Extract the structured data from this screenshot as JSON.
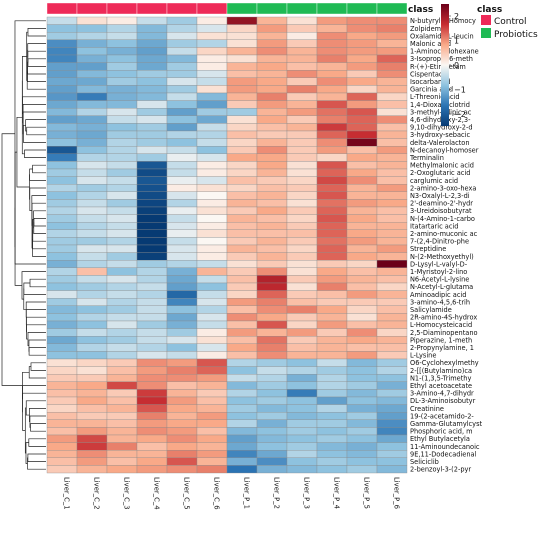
{
  "legend": {
    "title": "class",
    "items": [
      {
        "label": "Control",
        "color": "#ee2a58"
      },
      {
        "label": "Probiotics",
        "color": "#1fba54"
      }
    ]
  },
  "colorbar": {
    "ticks": [
      "2",
      "1",
      "0",
      "−1",
      "−2"
    ],
    "colors": [
      "#6b0019",
      "#c62d32",
      "#f9a988",
      "#fbf7f3",
      "#8ec2df",
      "#2b73b3",
      "#063a73"
    ]
  },
  "chart_data": {
    "type": "heatmap",
    "title": "",
    "columns": [
      "Liver_C_1",
      "Liver_C_2",
      "Liver_C_3",
      "Liver_C_4",
      "Liver_C_5",
      "Liver_C_6",
      "Liver_P_1",
      "Liver_P_2",
      "Liver_P_3",
      "Liver_P_4",
      "Liver_P_5",
      "Liver_P_6"
    ],
    "column_class": [
      "Control",
      "Control",
      "Control",
      "Control",
      "Control",
      "Control",
      "Probiotics",
      "Probiotics",
      "Probiotics",
      "Probiotics",
      "Probiotics",
      "Probiotics"
    ],
    "rows": [
      "N-butyryl-L-Homocy",
      "Zolpidem",
      "Oxalamido-L-leucin",
      "Malonic acid",
      "1-Aminocyclohexane",
      "3-Isopropyl-6-meth",
      "R-(+)-Etiracetam",
      "Cispentacin",
      "Isocarbamid",
      "Garcinia acid",
      "L-Threonic acid",
      "1,4-Dioxacyclotrid",
      "3-methyl-adipic ac",
      "4,6-dihydroxy-2,3-",
      "9,10-dihydroxy-2-d",
      "3-hydroxy-sebacic",
      "delta-Valerolacton",
      "N-decanoyl-homoser",
      "Terminalin",
      "Methylmalonic acid",
      "2-Oxoglutaric acid",
      "carglumic acid",
      "2-amino-3-oxo-hexa",
      "N3-Oxalyl-L-2,3-di",
      "2'-deamino-2'-hydr",
      "3-Ureidoisobutyrat",
      "N-(4-Amino-1-carbo",
      "Itatartaric acid",
      "2-amino-muconic ac",
      "7-(2,4-Dinitro-phe",
      "Streptidine",
      "N-(2-Methoxyethyl)",
      "D-Lysyl-L-valyl-D-",
      "1-Myristoyl-2-lino",
      "N6-Acetyl-L-lysine",
      "N-Acetyl-L-glutama",
      "Aminoadipic acid",
      "3-amino-4,5,6-trih",
      "Salicylamide",
      "2R-amino-4S-hydrox",
      "L-Homocysteicacid",
      "2,5-Diaminopentano",
      "Piperazine, 1-meth",
      "2-Propynylamine, 1",
      "L-Lysine",
      "O6-Cyclohexylmethy",
      "2-[[(Butylamino)ca",
      "N1-(1,3,5-Trimethy",
      "Ethyl acetoacetate",
      "3-Amino-4,7-dihydr",
      "DL-3-Aminoisobutyr",
      "Creatinine",
      "19-(2-acetamido-2-",
      "Gamma-Glutamylcyst",
      "Phosphoric acid, m",
      "Ethyl Butylacetyla",
      "11-Aminoundecanoic",
      "9E,11-Dodecadienal",
      "Seliciclib",
      "2-benzoyl-3-(2-pyr"
    ],
    "values": [
      [
        -0.3,
        0.2,
        0.1,
        -0.3,
        -0.5,
        0.1,
        2.1,
        0.6,
        0.2,
        0.8,
        0.9,
        0.9
      ],
      [
        -0.6,
        -0.6,
        -0.4,
        -0.7,
        -0.4,
        -0.2,
        0.3,
        0.8,
        0.4,
        0.6,
        0.9,
        1.0
      ],
      [
        -0.5,
        -0.4,
        -0.3,
        -0.7,
        -0.2,
        0.2,
        0.2,
        0.6,
        0.1,
        0.9,
        0.7,
        0.8
      ],
      [
        -1.2,
        -0.8,
        -0.6,
        -0.9,
        -0.5,
        -0.4,
        0.2,
        0.8,
        0.4,
        0.9,
        0.8,
        0.6
      ],
      [
        -1.3,
        -0.6,
        -0.8,
        -1.0,
        -0.3,
        0.3,
        0.6,
        0.9,
        0.6,
        0.9,
        0.8,
        0.8
      ],
      [
        -1.3,
        -0.8,
        -0.6,
        -0.9,
        -0.7,
        0.1,
        0.2,
        0.6,
        0.6,
        1.0,
        0.7,
        1.2
      ],
      [
        -1.0,
        -1.0,
        -0.5,
        -0.9,
        -0.5,
        0.1,
        0.6,
        0.7,
        0.5,
        0.6,
        0.8,
        1.0
      ],
      [
        -1.0,
        -0.7,
        -0.6,
        -0.5,
        -0.5,
        -0.2,
        0.5,
        0.6,
        0.9,
        0.7,
        0.4,
        0.9
      ],
      [
        -0.9,
        -0.9,
        -0.5,
        -0.6,
        -0.2,
        -0.3,
        0.8,
        0.7,
        0.4,
        0.9,
        0.7,
        0.6
      ],
      [
        -1.0,
        -0.7,
        -0.8,
        -0.7,
        -0.5,
        0.2,
        0.8,
        0.7,
        1.0,
        0.7,
        0.3,
        0.6
      ],
      [
        -1.1,
        -1.4,
        -0.8,
        -0.7,
        -0.3,
        -0.7,
        0.6,
        1.0,
        0.4,
        0.6,
        1.2,
        0.3
      ],
      [
        -0.9,
        -0.7,
        -0.7,
        -0.2,
        -0.6,
        -1.0,
        0.4,
        0.8,
        0.6,
        1.3,
        0.8,
        0.5
      ],
      [
        -0.7,
        -0.4,
        -0.2,
        -0.5,
        -1.0,
        -0.5,
        -0.5,
        0.6,
        0.8,
        1.1,
        1.3,
        0.2
      ],
      [
        -1.0,
        -0.9,
        -0.3,
        -0.2,
        -0.6,
        -0.9,
        0.2,
        0.7,
        0.4,
        1.0,
        1.2,
        0.9
      ],
      [
        -0.7,
        -0.8,
        -0.6,
        -0.5,
        -1.0,
        -0.3,
        0.3,
        0.5,
        0.6,
        1.5,
        1.2,
        0.5
      ],
      [
        -0.8,
        -0.9,
        -0.5,
        -0.5,
        -0.4,
        -0.4,
        0.5,
        0.4,
        0.4,
        1.2,
        1.6,
        0.6
      ],
      [
        -0.6,
        -0.8,
        -0.4,
        -0.5,
        -0.6,
        -0.3,
        0.3,
        0.6,
        0.4,
        0.9,
        2.4,
        0.5
      ],
      [
        -2.0,
        -0.6,
        -0.4,
        -0.2,
        -0.3,
        -0.6,
        0.4,
        0.9,
        0.4,
        0.8,
        0.5,
        0.8
      ],
      [
        -1.4,
        -0.4,
        -0.4,
        -0.5,
        -0.1,
        -0.2,
        0.7,
        0.7,
        0.4,
        0.3,
        0.7,
        0.6
      ],
      [
        -0.6,
        -0.2,
        -0.3,
        -2.0,
        -0.3,
        0.1,
        0.3,
        0.7,
        0.2,
        1.3,
        0.5,
        0.6
      ],
      [
        -0.5,
        -0.3,
        -0.5,
        -2.2,
        -0.3,
        0.1,
        0.3,
        0.6,
        0.2,
        1.2,
        0.7,
        0.5
      ],
      [
        -0.6,
        -0.2,
        -0.3,
        -2.0,
        -0.1,
        -0.2,
        0.5,
        0.4,
        0.3,
        1.4,
        0.9,
        0.5
      ],
      [
        -0.4,
        -0.5,
        -0.4,
        -2.1,
        0.1,
        0.2,
        0.3,
        0.5,
        0.4,
        1.2,
        0.6,
        0.8
      ],
      [
        -0.6,
        -0.4,
        -0.2,
        -2.2,
        -0.2,
        0.0,
        0.5,
        0.6,
        0.3,
        1.3,
        0.6,
        0.6
      ],
      [
        -0.5,
        -0.3,
        -0.5,
        -2.3,
        -0.4,
        0.1,
        0.6,
        0.5,
        0.2,
        1.1,
        0.8,
        0.7
      ],
      [
        -0.4,
        -0.2,
        -0.3,
        -2.4,
        -0.1,
        0.2,
        0.4,
        0.7,
        0.4,
        1.2,
        0.6,
        0.5
      ],
      [
        -0.5,
        -0.3,
        -0.2,
        -2.5,
        -0.3,
        0.0,
        0.6,
        0.5,
        0.3,
        1.3,
        0.7,
        0.5
      ],
      [
        -0.6,
        -0.4,
        -0.3,
        -2.5,
        -0.2,
        0.1,
        0.5,
        0.6,
        0.4,
        1.2,
        0.6,
        0.6
      ],
      [
        -0.4,
        -0.3,
        -0.2,
        -2.5,
        -0.1,
        0.2,
        0.5,
        0.5,
        0.5,
        1.2,
        0.7,
        0.6
      ],
      [
        -0.5,
        -0.5,
        -0.4,
        -2.6,
        -0.3,
        0.0,
        0.4,
        0.6,
        0.4,
        1.1,
        0.8,
        0.6
      ],
      [
        -0.5,
        -0.2,
        -0.2,
        -2.5,
        -0.2,
        0.1,
        0.6,
        0.5,
        0.3,
        1.2,
        0.6,
        0.8
      ],
      [
        -0.6,
        -0.3,
        -0.5,
        -2.4,
        -0.2,
        0.1,
        0.4,
        0.6,
        0.4,
        1.2,
        0.7,
        0.6
      ],
      [
        -0.8,
        -0.4,
        -0.3,
        -0.5,
        -0.4,
        -0.3,
        0.2,
        0.4,
        0.2,
        0.4,
        0.3,
        2.5
      ],
      [
        -0.4,
        0.5,
        -0.6,
        -0.4,
        -0.8,
        0.6,
        0.4,
        0.9,
        0.2,
        0.7,
        0.5,
        0.6
      ],
      [
        -0.5,
        -0.3,
        -0.2,
        -0.4,
        -0.9,
        -0.3,
        0.5,
        1.8,
        0.4,
        0.8,
        0.6,
        0.5
      ],
      [
        -0.6,
        -0.5,
        -0.4,
        -0.3,
        -1.0,
        -0.6,
        0.4,
        1.7,
        0.2,
        1.0,
        0.5,
        0.3
      ],
      [
        -0.2,
        -0.4,
        -0.3,
        -0.4,
        -1.7,
        -0.3,
        0.3,
        1.2,
        0.4,
        0.5,
        0.8,
        0.6
      ],
      [
        -0.5,
        -0.2,
        -0.4,
        -0.3,
        -1.3,
        -0.2,
        0.8,
        1.0,
        0.5,
        0.4,
        0.4,
        0.4
      ],
      [
        -0.7,
        -0.6,
        -0.5,
        -0.3,
        -0.6,
        -0.4,
        0.5,
        0.9,
        1.0,
        0.7,
        0.3,
        0.5
      ],
      [
        -0.6,
        -0.4,
        -0.3,
        -0.3,
        -0.9,
        -0.2,
        0.9,
        0.7,
        0.4,
        0.6,
        0.2,
        0.6
      ],
      [
        -0.8,
        -0.6,
        -0.2,
        -0.5,
        -0.8,
        -0.3,
        0.5,
        1.3,
        0.3,
        0.8,
        0.5,
        0.6
      ],
      [
        -0.5,
        -0.3,
        -0.4,
        -0.3,
        -0.5,
        0.1,
        0.8,
        0.6,
        0.8,
        0.4,
        0.9,
        0.3
      ],
      [
        -0.9,
        -0.6,
        -0.5,
        -0.3,
        -0.2,
        0.2,
        0.5,
        1.1,
        0.4,
        0.6,
        0.7,
        0.6
      ],
      [
        -0.7,
        -0.4,
        -0.3,
        -0.4,
        -0.6,
        -0.2,
        0.7,
        1.0,
        0.5,
        0.6,
        0.5,
        0.5
      ],
      [
        -0.6,
        -0.6,
        -0.4,
        -0.2,
        -0.3,
        0.1,
        0.5,
        0.9,
        0.6,
        0.6,
        0.8,
        0.4
      ],
      [
        0.2,
        0.3,
        0.4,
        0.9,
        0.8,
        1.3,
        -0.4,
        -0.5,
        -0.6,
        -0.3,
        -0.7,
        -0.5
      ],
      [
        0.3,
        0.2,
        0.5,
        0.8,
        1.0,
        1.2,
        -0.6,
        -0.3,
        -0.4,
        -0.5,
        -0.6,
        -0.4
      ],
      [
        0.4,
        0.4,
        0.6,
        0.9,
        0.9,
        0.8,
        -0.3,
        -0.4,
        -0.8,
        -0.4,
        -0.6,
        -0.6
      ],
      [
        0.6,
        0.7,
        1.4,
        0.9,
        0.5,
        0.6,
        -0.7,
        -0.5,
        -0.6,
        -0.4,
        -0.5,
        -0.8
      ],
      [
        0.5,
        0.6,
        0.4,
        1.5,
        0.6,
        0.4,
        -0.4,
        -0.6,
        -1.4,
        -0.5,
        -0.7,
        -0.5
      ],
      [
        0.4,
        0.7,
        0.5,
        1.6,
        0.8,
        0.5,
        -0.6,
        -0.5,
        -0.6,
        -1.0,
        -0.6,
        -0.7
      ],
      [
        0.3,
        0.5,
        0.6,
        1.3,
        0.7,
        0.6,
        -0.5,
        -0.7,
        -0.6,
        -0.4,
        -0.8,
        -0.9
      ],
      [
        0.5,
        0.4,
        0.4,
        1.0,
        0.6,
        0.8,
        -0.6,
        -0.5,
        -0.7,
        -0.6,
        -0.5,
        -1.0
      ],
      [
        0.6,
        0.6,
        0.5,
        0.8,
        0.7,
        0.7,
        -0.4,
        -0.8,
        -0.5,
        -0.5,
        -0.7,
        -1.2
      ],
      [
        0.5,
        0.8,
        0.6,
        0.9,
        0.8,
        0.5,
        -0.7,
        -0.6,
        -0.5,
        -0.6,
        -0.5,
        -1.3
      ],
      [
        0.8,
        1.4,
        0.6,
        0.7,
        0.9,
        0.7,
        -1.0,
        -0.7,
        -0.6,
        -0.5,
        -0.6,
        -0.9
      ],
      [
        0.7,
        1.5,
        1.0,
        0.5,
        0.7,
        0.6,
        -0.9,
        -0.6,
        -0.5,
        -0.7,
        -0.8,
        -0.6
      ],
      [
        0.6,
        0.9,
        0.6,
        0.6,
        1.0,
        0.8,
        -1.3,
        -0.9,
        -0.4,
        -0.6,
        -0.7,
        -0.5
      ],
      [
        0.5,
        0.8,
        0.5,
        0.7,
        1.3,
        0.6,
        -0.8,
        -1.2,
        -0.6,
        -0.5,
        -0.6,
        -0.6
      ],
      [
        0.4,
        0.6,
        0.7,
        0.8,
        0.9,
        1.0,
        -1.5,
        -0.8,
        -0.7,
        -0.6,
        -0.5,
        -0.7
      ]
    ],
    "color_range": [
      -2.5,
      2.5
    ]
  }
}
